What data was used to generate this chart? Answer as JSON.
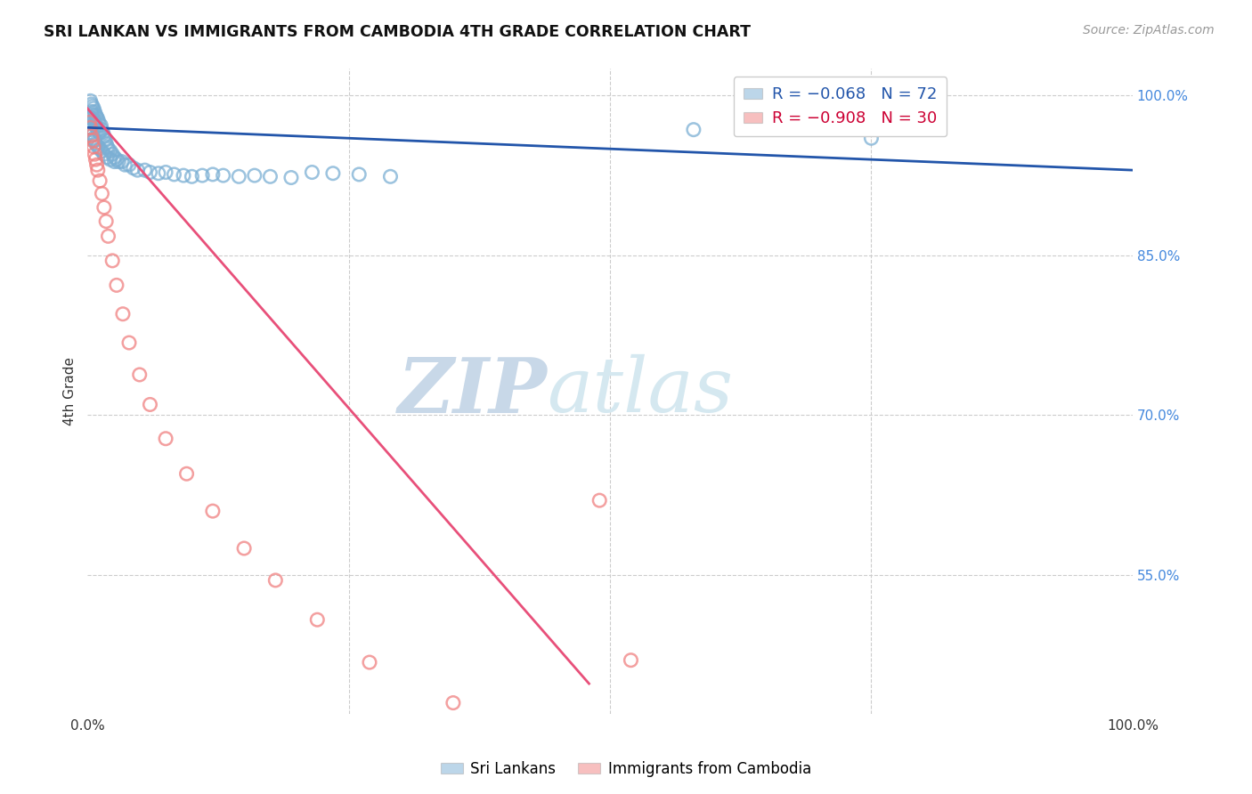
{
  "title": "SRI LANKAN VS IMMIGRANTS FROM CAMBODIA 4TH GRADE CORRELATION CHART",
  "source": "Source: ZipAtlas.com",
  "ylabel": "4th Grade",
  "xlim": [
    0.0,
    1.0
  ],
  "ylim": [
    0.42,
    1.025
  ],
  "ytick_labels": [
    "55.0%",
    "70.0%",
    "85.0%",
    "100.0%"
  ],
  "ytick_values": [
    0.55,
    0.7,
    0.85,
    1.0
  ],
  "blue_color": "#7BAFD4",
  "pink_color": "#F08080",
  "trendline_blue": "#2255AA",
  "trendline_pink": "#E8507A",
  "watermark_zip": "ZIP",
  "watermark_atlas": "atlas",
  "sri_lankans_x": [
    0.002,
    0.003,
    0.003,
    0.004,
    0.004,
    0.005,
    0.005,
    0.006,
    0.006,
    0.007,
    0.007,
    0.008,
    0.008,
    0.009,
    0.009,
    0.01,
    0.01,
    0.011,
    0.011,
    0.012,
    0.013,
    0.014,
    0.015,
    0.016,
    0.017,
    0.018,
    0.019,
    0.02,
    0.022,
    0.024,
    0.026,
    0.028,
    0.03,
    0.033,
    0.036,
    0.04,
    0.044,
    0.048,
    0.055,
    0.06,
    0.068,
    0.075,
    0.083,
    0.092,
    0.1,
    0.11,
    0.12,
    0.13,
    0.145,
    0.16,
    0.175,
    0.195,
    0.215,
    0.235,
    0.26,
    0.29,
    0.002,
    0.003,
    0.004,
    0.005,
    0.006,
    0.007,
    0.008,
    0.01,
    0.012,
    0.014,
    0.016,
    0.019,
    0.022,
    0.026,
    0.58,
    0.75
  ],
  "sri_lankans_y": [
    0.98,
    0.978,
    0.995,
    0.985,
    0.992,
    0.982,
    0.99,
    0.978,
    0.988,
    0.975,
    0.985,
    0.972,
    0.982,
    0.97,
    0.98,
    0.968,
    0.978,
    0.966,
    0.975,
    0.965,
    0.972,
    0.968,
    0.965,
    0.962,
    0.958,
    0.955,
    0.952,
    0.95,
    0.948,
    0.945,
    0.942,
    0.94,
    0.938,
    0.938,
    0.935,
    0.935,
    0.932,
    0.93,
    0.93,
    0.928,
    0.927,
    0.928,
    0.926,
    0.925,
    0.924,
    0.925,
    0.926,
    0.925,
    0.924,
    0.925,
    0.924,
    0.923,
    0.928,
    0.927,
    0.926,
    0.924,
    0.97,
    0.968,
    0.965,
    0.963,
    0.96,
    0.958,
    0.955,
    0.952,
    0.95,
    0.948,
    0.945,
    0.942,
    0.94,
    0.938,
    0.968,
    0.96
  ],
  "cambodia_x": [
    0.002,
    0.003,
    0.004,
    0.005,
    0.006,
    0.007,
    0.008,
    0.009,
    0.01,
    0.012,
    0.014,
    0.016,
    0.018,
    0.02,
    0.024,
    0.028,
    0.034,
    0.04,
    0.05,
    0.06,
    0.075,
    0.095,
    0.12,
    0.15,
    0.18,
    0.22,
    0.27,
    0.35,
    0.49,
    0.52
  ],
  "cambodia_y": [
    0.975,
    0.97,
    0.962,
    0.958,
    0.952,
    0.945,
    0.94,
    0.935,
    0.93,
    0.92,
    0.908,
    0.895,
    0.882,
    0.868,
    0.845,
    0.822,
    0.795,
    0.768,
    0.738,
    0.71,
    0.678,
    0.645,
    0.61,
    0.575,
    0.545,
    0.508,
    0.468,
    0.43,
    0.62,
    0.47
  ],
  "blue_trendline_x0": 0.0,
  "blue_trendline_y0": 0.97,
  "blue_trendline_x1": 1.0,
  "blue_trendline_y1": 0.93,
  "pink_trendline_x0": 0.0,
  "pink_trendline_y0": 0.988,
  "pink_trendline_x1": 0.48,
  "pink_trendline_y1": 0.448
}
